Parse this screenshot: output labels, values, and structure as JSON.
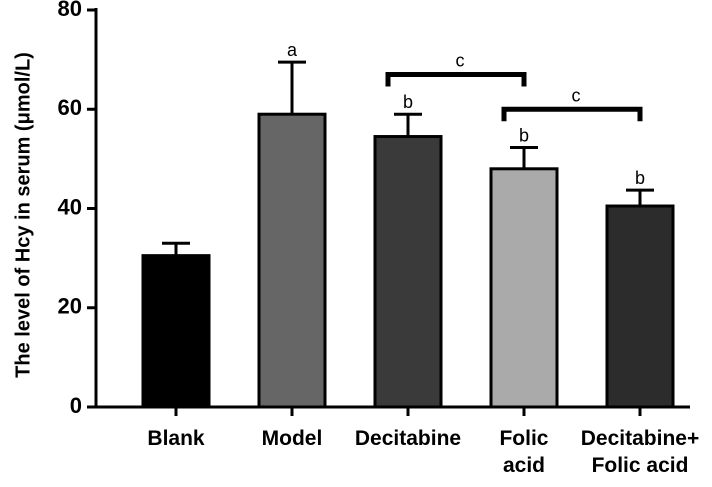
{
  "chart_data": {
    "type": "bar",
    "title": "",
    "xlabel": "",
    "ylabel": "The level of Hcy in serum (μmol/L)",
    "ylim": [
      0,
      80
    ],
    "yticks": [
      0,
      20,
      40,
      60,
      80
    ],
    "grid": false,
    "categories": [
      {
        "lines": [
          "Blank"
        ]
      },
      {
        "lines": [
          "Model"
        ]
      },
      {
        "lines": [
          "Decitabine"
        ]
      },
      {
        "lines": [
          "Folic",
          "acid"
        ]
      },
      {
        "lines": [
          "Decitabine+",
          "Folic acid"
        ]
      }
    ],
    "values": [
      30.5,
      59,
      54.5,
      48,
      40.5
    ],
    "errors": [
      2.5,
      10.5,
      4.5,
      4.3,
      3.2
    ],
    "bar_colors": [
      "#000000",
      "#666666",
      "#3a3a3a",
      "#aaaaaa",
      "#2c2c2c"
    ],
    "significance_labels": [
      "",
      "a",
      "b",
      "b",
      "b"
    ],
    "brackets": [
      {
        "from": 2,
        "to": 3,
        "y": 67,
        "label": "c"
      },
      {
        "from": 3,
        "to": 4,
        "y": 60,
        "label": "c"
      }
    ]
  }
}
